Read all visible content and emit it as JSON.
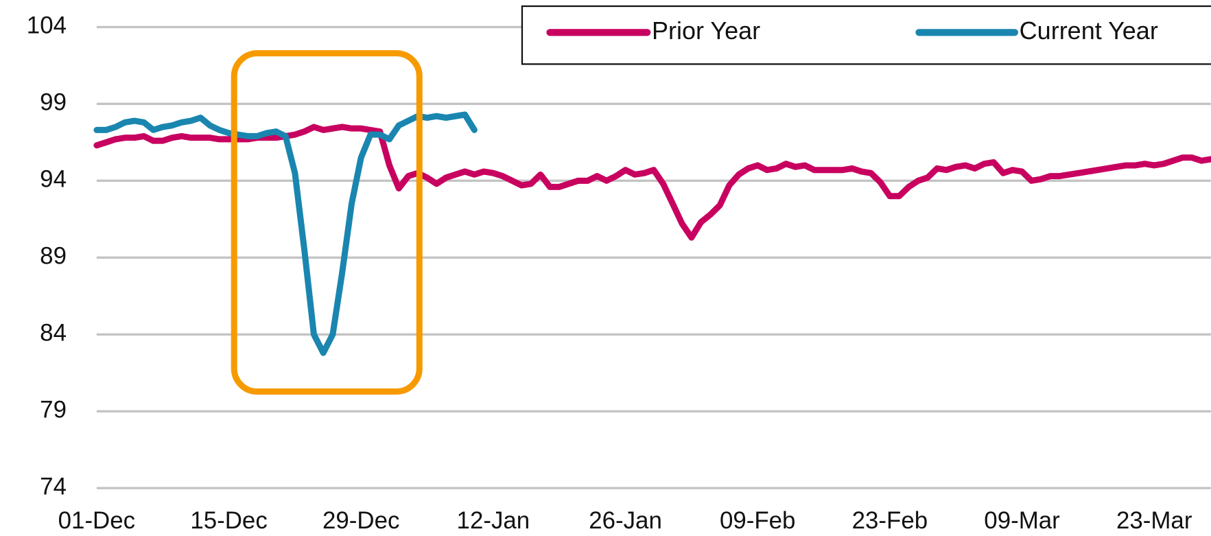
{
  "chart_data": {
    "type": "line",
    "categories": [
      "01-Dec",
      null,
      null,
      null,
      null,
      null,
      null,
      null,
      null,
      null,
      null,
      null,
      null,
      null,
      "15-Dec",
      null,
      null,
      null,
      null,
      null,
      null,
      null,
      null,
      null,
      null,
      null,
      null,
      null,
      "29-Dec",
      null,
      null,
      null,
      null,
      null,
      null,
      null,
      null,
      null,
      null,
      null,
      null,
      null,
      "12-Jan",
      null,
      null,
      null,
      null,
      null,
      null,
      null,
      null,
      null,
      null,
      null,
      null,
      null,
      "26-Jan",
      null,
      null,
      null,
      null,
      null,
      null,
      null,
      null,
      null,
      null,
      null,
      null,
      null,
      "09-Feb",
      null,
      null,
      null,
      null,
      null,
      null,
      null,
      null,
      null,
      null,
      null,
      null,
      null,
      "23-Feb",
      null,
      null,
      null,
      null,
      null,
      null,
      null,
      null,
      null,
      null,
      null,
      null,
      null,
      "09-Mar",
      null,
      null,
      null,
      null,
      null,
      null,
      null,
      null,
      null,
      null,
      null,
      null,
      null,
      "23-Mar",
      null,
      null,
      null,
      null,
      null,
      null
    ],
    "series": [
      {
        "name": "Prior Year",
        "color": "#c8005f",
        "values": [
          96.3,
          96.5,
          96.7,
          96.8,
          96.8,
          96.9,
          96.6,
          96.6,
          96.8,
          96.9,
          96.8,
          96.8,
          96.8,
          96.7,
          96.7,
          96.7,
          96.7,
          96.8,
          96.8,
          96.8,
          96.9,
          97.0,
          97.2,
          97.5,
          97.3,
          97.4,
          97.5,
          97.4,
          97.4,
          97.3,
          97.2,
          95.0,
          93.5,
          94.3,
          94.5,
          94.2,
          93.8,
          94.2,
          94.4,
          94.6,
          94.4,
          94.6,
          94.5,
          94.3,
          94.0,
          93.7,
          93.8,
          94.4,
          93.6,
          93.6,
          93.8,
          94.0,
          94.0,
          94.3,
          94.0,
          94.3,
          94.7,
          94.4,
          94.5,
          94.7,
          93.8,
          92.5,
          91.2,
          90.3,
          91.3,
          91.8,
          92.4,
          93.7,
          94.4,
          94.8,
          95.0,
          94.7,
          94.8,
          95.1,
          94.9,
          95.0,
          94.7,
          94.7,
          94.7,
          94.7,
          94.8,
          94.6,
          94.5,
          93.9,
          93.0,
          93.0,
          93.6,
          94.0,
          94.2,
          94.8,
          94.7,
          94.9,
          95.0,
          94.8,
          95.1,
          95.2,
          94.5,
          94.7,
          94.6,
          94.0,
          94.1,
          94.3,
          94.3,
          94.4,
          94.5,
          94.6,
          94.7,
          94.8,
          94.9,
          95.0,
          95.0,
          95.1,
          95.0,
          95.1,
          95.3,
          95.5,
          95.5,
          95.3,
          95.4
        ]
      },
      {
        "name": "Current Year",
        "color": "#1a86b0",
        "values": [
          97.3,
          97.3,
          97.5,
          97.8,
          97.9,
          97.8,
          97.3,
          97.5,
          97.6,
          97.8,
          97.9,
          98.1,
          97.6,
          97.3,
          97.1,
          97.0,
          96.9,
          96.9,
          97.1,
          97.2,
          96.9,
          94.5,
          89.5,
          84.0,
          82.8,
          84.0,
          88.0,
          92.5,
          95.5,
          97.0,
          97.0,
          96.7,
          97.6,
          97.9,
          98.2,
          98.1,
          98.2,
          98.1,
          98.2,
          98.3,
          97.3,
          null,
          null,
          null,
          null,
          null,
          null,
          null,
          null,
          null,
          null,
          null,
          null,
          null,
          null,
          null,
          null,
          null,
          null,
          null,
          null,
          null,
          null,
          null,
          null,
          null,
          null,
          null,
          null,
          null,
          null,
          null,
          null,
          null,
          null,
          null,
          null,
          null,
          null,
          null,
          null,
          null,
          null,
          null,
          null,
          null,
          null,
          null,
          null,
          null,
          null,
          null,
          null,
          null,
          null,
          null,
          null,
          null,
          null,
          null,
          null,
          null,
          null,
          null,
          null,
          null,
          null,
          null,
          null,
          null,
          null,
          null,
          null,
          null,
          null,
          null,
          null,
          null,
          null
        ]
      }
    ],
    "ylim": [
      74,
      104
    ],
    "yticks": [
      74,
      79,
      84,
      89,
      94,
      99,
      104
    ],
    "grid": true,
    "legend": "top-right"
  }
}
